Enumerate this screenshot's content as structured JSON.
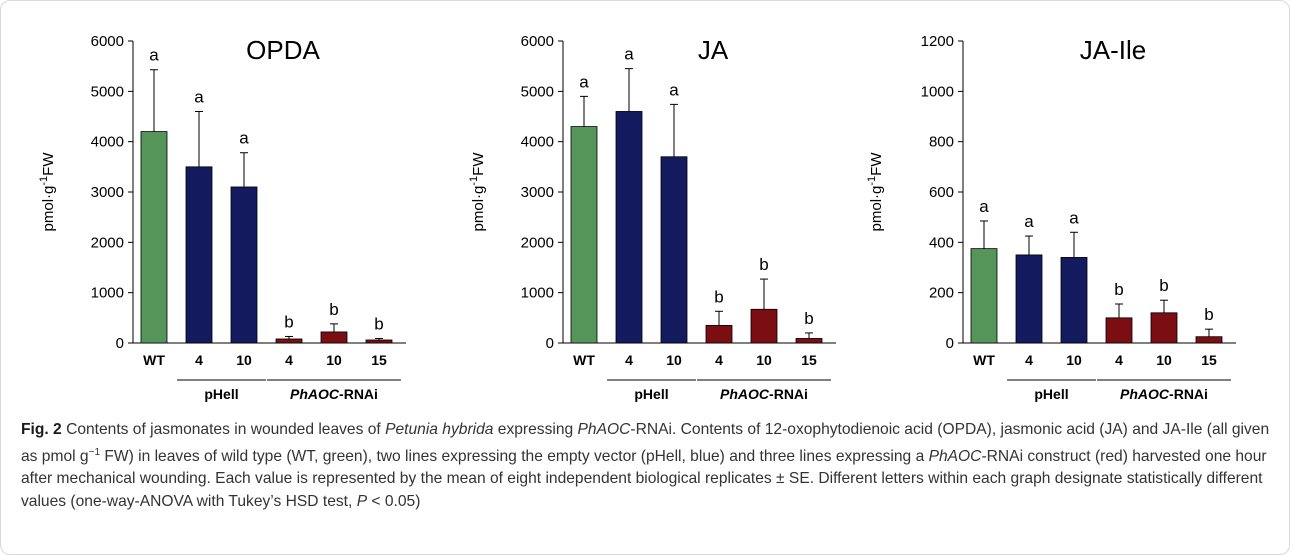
{
  "colors": {
    "wt": "#55955a",
    "phell": "#131a5e",
    "rnai": "#7a0e13"
  },
  "groups": {
    "phell": "pHell",
    "rnai_italic": "PhAOC",
    "rnai_suffix": "-RNAi"
  },
  "chart_data": [
    {
      "type": "bar",
      "title": "OPDA",
      "ylabel_base": "pmol·g",
      "ylabel_exp": "-1",
      "ylabel_unit": "FW",
      "categories": [
        "WT",
        "4",
        "10",
        "4",
        "10",
        "15"
      ],
      "series_colors": [
        "wt",
        "phell",
        "phell",
        "rnai",
        "rnai",
        "rnai"
      ],
      "values": [
        4200,
        3500,
        3100,
        80,
        220,
        60
      ],
      "errors": [
        1230,
        1100,
        680,
        50,
        160,
        30
      ],
      "letters": [
        "a",
        "a",
        "a",
        "b",
        "b",
        "b"
      ],
      "ylim": [
        0,
        6000
      ],
      "yticks": [
        0,
        1000,
        2000,
        3000,
        4000,
        5000,
        6000
      ]
    },
    {
      "type": "bar",
      "title": "JA",
      "ylabel_base": "pmol·g",
      "ylabel_exp": "-1",
      "ylabel_unit": "FW",
      "categories": [
        "WT",
        "4",
        "10",
        "4",
        "10",
        "15"
      ],
      "series_colors": [
        "wt",
        "phell",
        "phell",
        "rnai",
        "rnai",
        "rnai"
      ],
      "values": [
        4300,
        4600,
        3700,
        350,
        670,
        90
      ],
      "errors": [
        600,
        850,
        1040,
        280,
        600,
        110
      ],
      "letters": [
        "a",
        "a",
        "a",
        "b",
        "b",
        "b"
      ],
      "ylim": [
        0,
        6000
      ],
      "yticks": [
        0,
        1000,
        2000,
        3000,
        4000,
        5000,
        6000
      ]
    },
    {
      "type": "bar",
      "title": "JA-Ile",
      "ylabel_base": "pmol·g",
      "ylabel_exp": "-1",
      "ylabel_unit": "FW",
      "categories": [
        "WT",
        "4",
        "10",
        "4",
        "10",
        "15"
      ],
      "series_colors": [
        "wt",
        "phell",
        "phell",
        "rnai",
        "rnai",
        "rnai"
      ],
      "values": [
        375,
        350,
        340,
        100,
        120,
        25
      ],
      "errors": [
        110,
        75,
        100,
        55,
        50,
        30
      ],
      "letters": [
        "a",
        "a",
        "a",
        "b",
        "b",
        "b"
      ],
      "ylim": [
        0,
        1200
      ],
      "yticks": [
        0,
        200,
        400,
        600,
        800,
        1000,
        1200
      ]
    }
  ],
  "caption": {
    "fig_label": "Fig. 2",
    "s1": " Contents of jasmonates in wounded leaves of ",
    "s2": "Petunia hybrida",
    "s3": " expressing ",
    "s4": "PhAOC",
    "s5": "-RNAi. Contents of 12-oxophytodienoic acid (OPDA), jasmonic acid (JA) and JA-Ile (all given as pmol g",
    "s6": "−1",
    "s7": " FW) in leaves of wild type (WT, green), two lines expressing the empty vector (pHell, blue) and three lines expressing a ",
    "s8": "PhAOC",
    "s9": "-RNAi construct (red) harvested one hour after mechanical wounding. Each value is represented by the mean of eight independent biological replicates ± SE. Different letters within each graph designate statistically different values (one-way-ANOVA with Tukey’s HSD test, ",
    "s10": "P",
    "s11": " < 0.05)"
  }
}
